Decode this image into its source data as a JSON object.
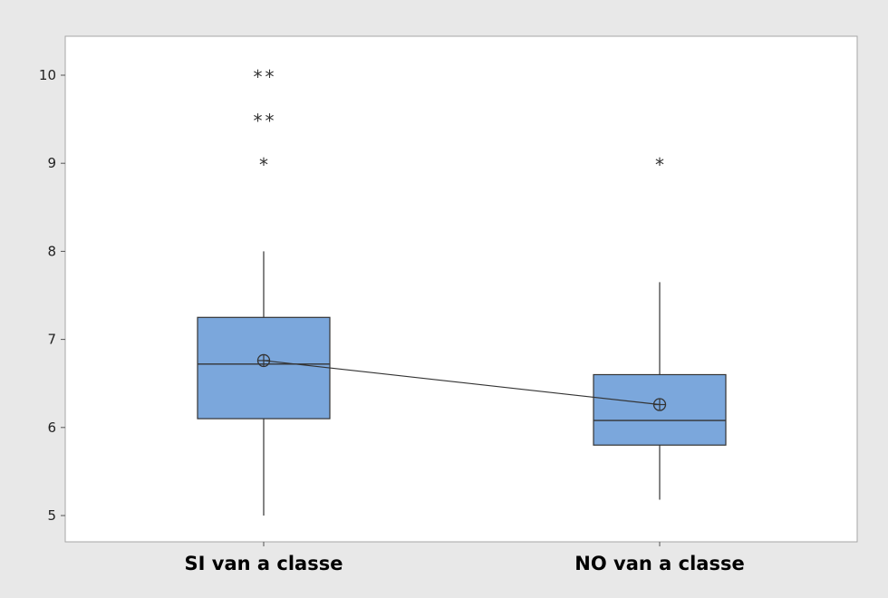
{
  "colors": {
    "figure_background": "#e8e8e8",
    "plot_background": "#ffffff",
    "plot_border": "#a6a6a6",
    "box_fill": "#7ba7dc",
    "box_stroke": "#333333",
    "mean_line": "#333333"
  },
  "chart_data": {
    "type": "boxplot",
    "title": "",
    "xlabel": "",
    "ylabel": "",
    "ylim": [
      4.7,
      10.5
    ],
    "yticks": [
      5,
      6,
      7,
      8,
      9,
      10
    ],
    "ytick_labels": [
      "5",
      "6",
      "7",
      "8",
      "9",
      "10"
    ],
    "grid": false,
    "legend": "none",
    "categories": [
      "SI van a classe",
      "NO van a classe"
    ],
    "boxes": [
      {
        "category": "SI van a classe",
        "whisker_low": 5.0,
        "q1": 6.1,
        "median": 6.72,
        "q3": 7.25,
        "whisker_high": 8.0,
        "mean": 6.76,
        "outliers": [
          9.0,
          9.5,
          9.5,
          10.0,
          10.0
        ]
      },
      {
        "category": "NO van a classe",
        "whisker_low": 5.18,
        "q1": 5.8,
        "median": 6.08,
        "q3": 6.6,
        "whisker_high": 7.65,
        "mean": 6.26,
        "outliers": [
          9.0
        ]
      }
    ],
    "mean_connect_line": true,
    "outlier_marker": "*",
    "mean_marker": "circled-plus"
  }
}
